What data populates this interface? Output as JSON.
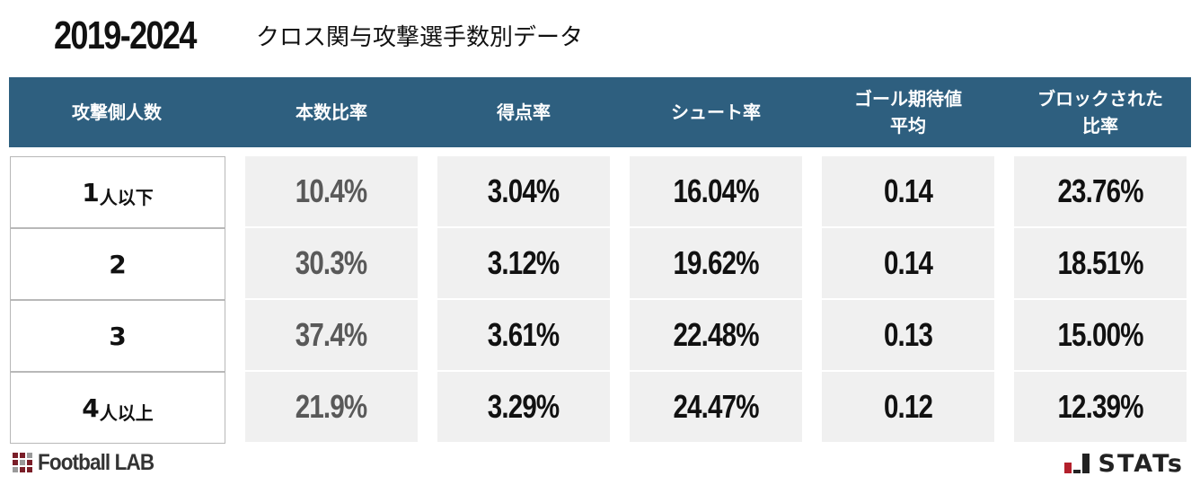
{
  "title": {
    "years": "2019-2024",
    "subtitle": "クロス関与攻撃選手数別データ"
  },
  "chart_data": {
    "type": "table",
    "columns": [
      "攻撃側人数",
      "本数比率",
      "得点率",
      "シュート率",
      "ゴール期待値\n平均",
      "ブロックされた\n比率"
    ],
    "rows": [
      {
        "label_num": "1",
        "label_suffix": "人以下",
        "values": [
          "10.4%",
          "3.04%",
          "16.04%",
          "0.14",
          "23.76%"
        ]
      },
      {
        "label_num": "2",
        "label_suffix": "",
        "values": [
          "30.3%",
          "3.12%",
          "19.62%",
          "0.14",
          "18.51%"
        ]
      },
      {
        "label_num": "3",
        "label_suffix": "",
        "values": [
          "37.4%",
          "3.61%",
          "22.48%",
          "0.13",
          "15.00%"
        ]
      },
      {
        "label_num": "4",
        "label_suffix": "人以上",
        "values": [
          "21.9%",
          "3.29%",
          "24.47%",
          "0.12",
          "12.39%"
        ]
      }
    ],
    "colors": {
      "header_bg": "#2e5f7f",
      "header_text": "#ffffff",
      "cell_bg": "#f0f0f0",
      "first_value_column_text": "#595959",
      "value_text": "#111111"
    }
  },
  "branding": {
    "left_logo": "Football LAB",
    "right_logo": "STATs"
  }
}
